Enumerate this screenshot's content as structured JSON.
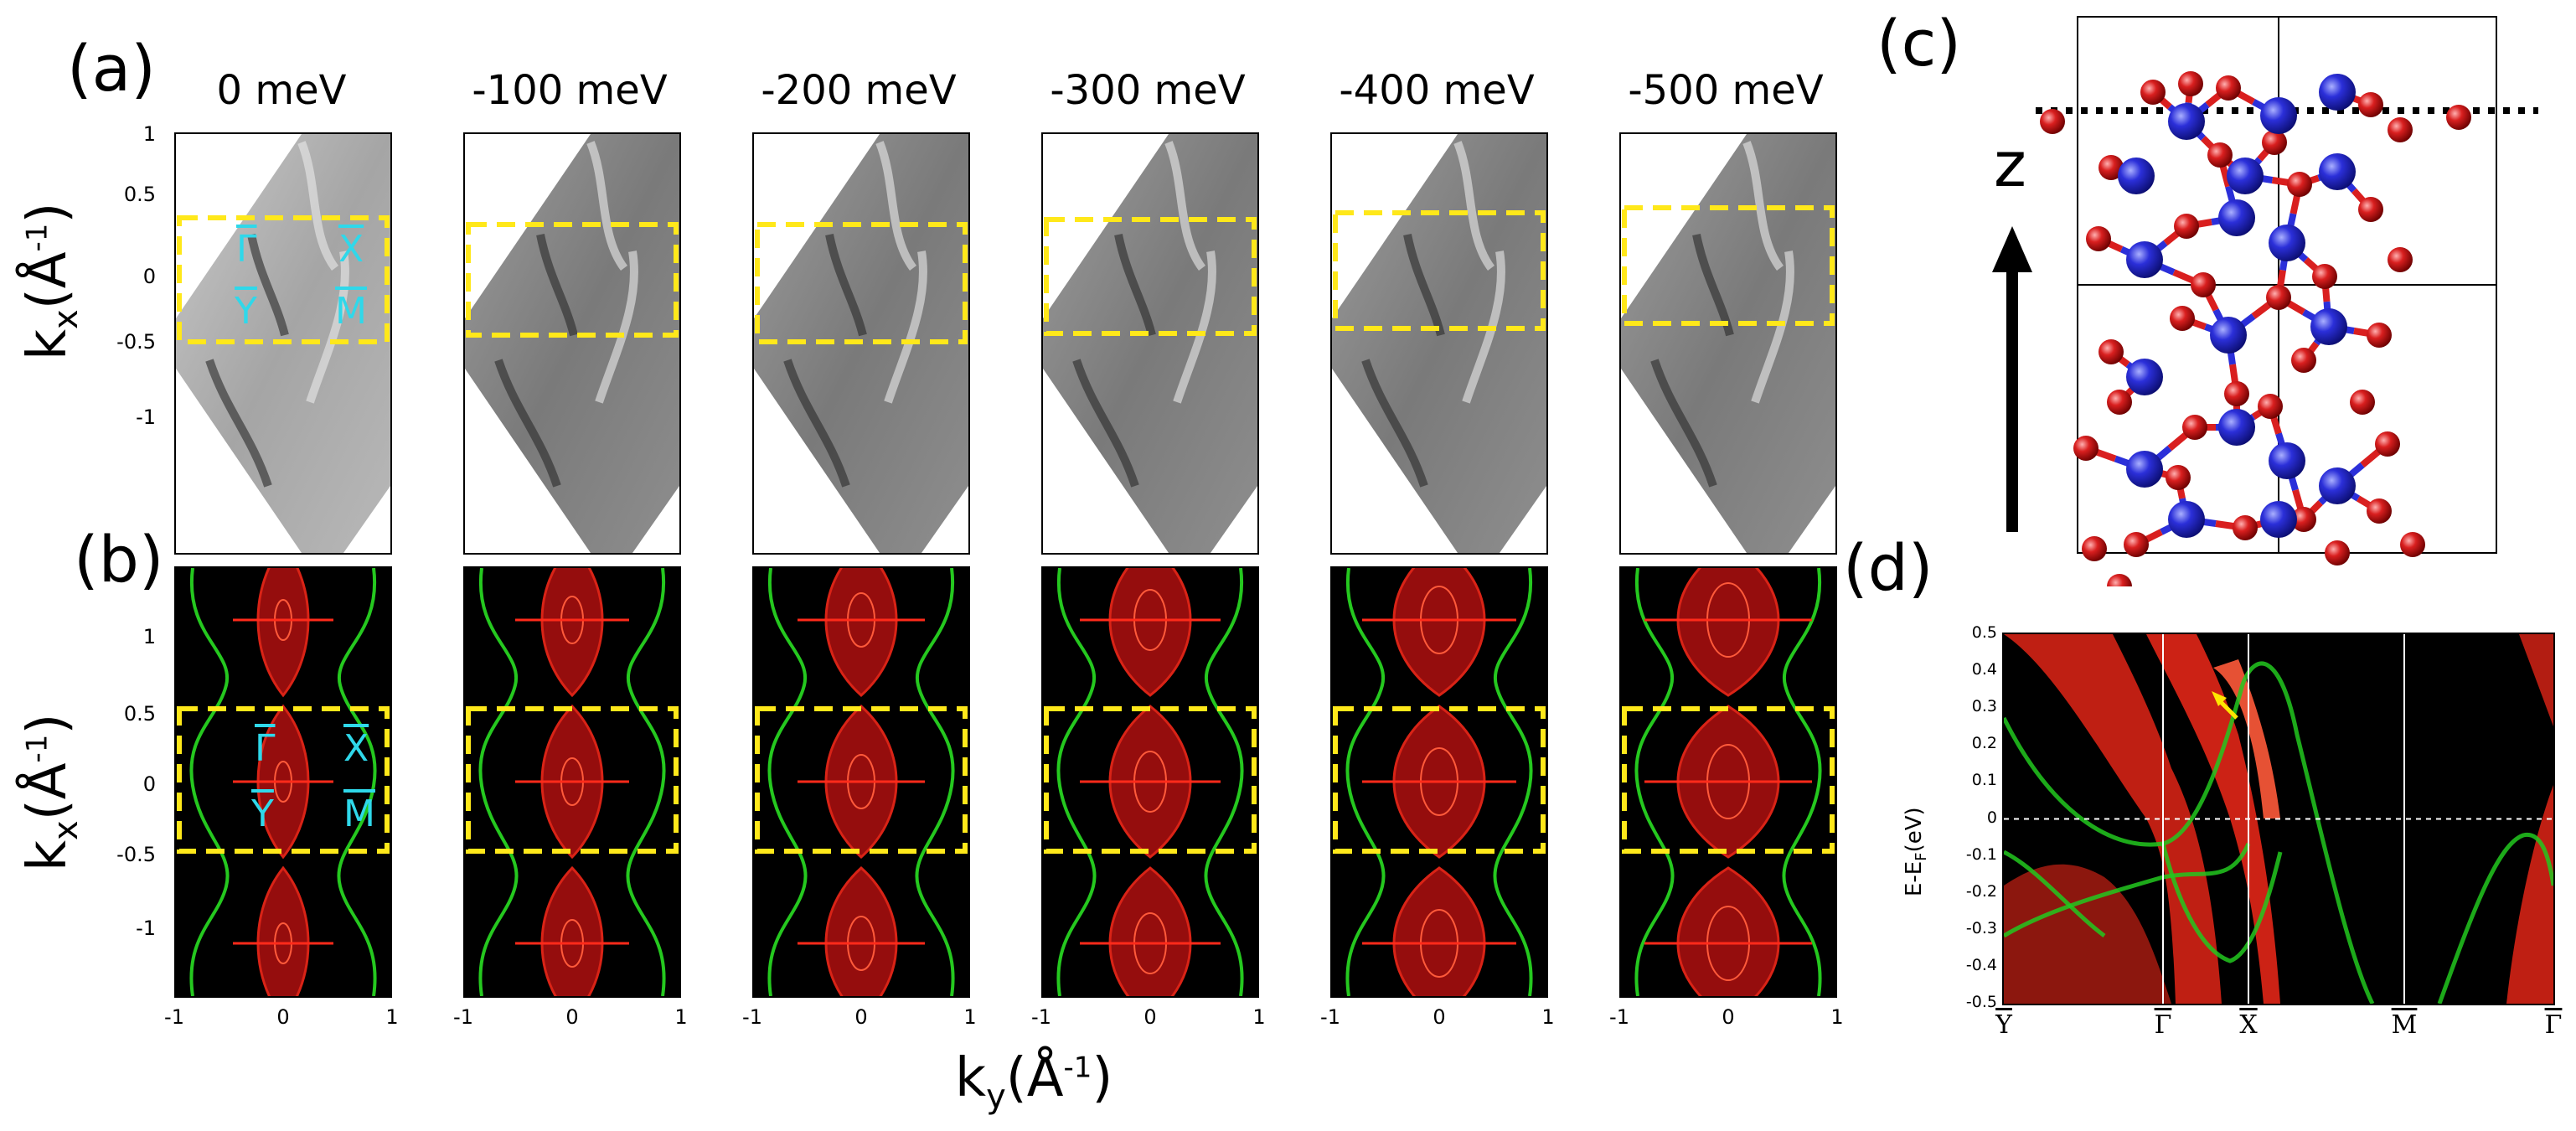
{
  "panels": {
    "a_label": "(a)",
    "b_label": "(b)",
    "c_label": "(c)",
    "d_label": "(d)"
  },
  "energies": [
    "0 meV",
    "-100 meV",
    "-200 meV",
    "-300 meV",
    "-400 meV",
    "-500 meV"
  ],
  "axes": {
    "kx_label": "k",
    "kx_sub": "x",
    "kx_unit": "(Å",
    "kx_sup": "-1",
    "kx_close": ")",
    "ky_label": "k",
    "ky_sub": "y",
    "ky_unit": "(Å",
    "ky_sup": "-1",
    "ky_close": ")",
    "a_yticks": [
      "1",
      "0.5",
      "0",
      "-0.5",
      "-1"
    ],
    "b_yticks": [
      "1",
      "0.5",
      "0",
      "-0.5",
      "-1"
    ],
    "xticks": [
      "-1",
      "0",
      "1"
    ]
  },
  "high_symmetry": {
    "gamma": "Γ",
    "x": "X",
    "y": "Y",
    "m": "M"
  },
  "structure": {
    "z_label": "z"
  },
  "chart_data": {
    "type": "line",
    "title": "",
    "ylabel_main": "E-E",
    "ylabel_sub": "F",
    "ylabel_unit": "(eV)",
    "ylim": [
      -0.5,
      0.5
    ],
    "yticks": [
      "0.5",
      "0.4",
      "0.3",
      "0.2",
      "0.1",
      "0",
      "-0.1",
      "-0.2",
      "-0.3",
      "-0.4",
      "-0.5"
    ],
    "xticks": [
      "Y",
      "Γ",
      "X",
      "M",
      "Γ"
    ],
    "fermi_level": 0,
    "colors": {
      "bulk": "#ff2a1a",
      "surface": "#22c81e",
      "fermi": "#ffffff",
      "arrow": "#ffe600"
    }
  },
  "colors": {
    "box": "#ffe81a",
    "label": "#2fd8ea",
    "atom_blue": "#2b2fd9",
    "atom_red": "#d91f1f"
  }
}
